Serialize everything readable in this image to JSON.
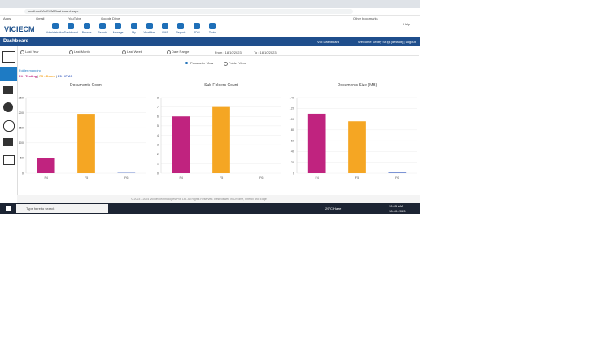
{
  "browser": {
    "url": "localhost/ViciECM/Dashboard.aspx",
    "bookmarks": [
      "Apps",
      "Gmail",
      "YouTube",
      "Google Drive",
      "Other bookmarks"
    ]
  },
  "app": {
    "logo": "VICIECM",
    "toolbar": [
      "Administration",
      "Dashboard",
      "Browse",
      "Search",
      "Manage",
      "My",
      "Workflow",
      "FMS",
      "Reports",
      "PDM",
      "Tools"
    ],
    "help": "Help",
    "page_title": "Dashboard",
    "dashboard_link": "Vici Dashboard",
    "welcome": "Welcome Sentry Sr @ (default) | Logout",
    "filters": [
      "Last Year",
      "Last Month",
      "Last Week",
      "Date Range"
    ],
    "from": "From : 18/10/2023",
    "to": "To : 18/10/2023",
    "views": [
      "Parameter View",
      "Folder View"
    ],
    "folder_mapping_title": "Folder mapping",
    "folder_mapping": [
      "F4 - Testing",
      "F5 - Demo",
      "F6 - IPMC"
    ],
    "footer": "© 2023 - 2024 Vicinet Technologies Pvt. Ltd. All Rights Reserved. Best viewed in Chrome, Firefox and Edge"
  },
  "chart_data": [
    {
      "type": "bar",
      "title": "Documents Count",
      "categories": [
        "F4",
        "F5",
        "F6"
      ],
      "values": [
        51,
        196,
        1
      ],
      "colors": [
        "#c0237f",
        "#f5a623",
        "#3b5fc0"
      ],
      "ylim": [
        0,
        250
      ],
      "yticks": [
        0,
        50,
        100,
        150,
        200,
        250
      ],
      "grid": true
    },
    {
      "type": "bar",
      "title": "Sub Folders Count",
      "categories": [
        "F4",
        "F5",
        "F6"
      ],
      "values": [
        6,
        7,
        0
      ],
      "colors": [
        "#c0237f",
        "#f5a623",
        "#3b5fc0"
      ],
      "ylim": [
        0,
        8
      ],
      "yticks": [
        0,
        1,
        2,
        3,
        4,
        5,
        6,
        7,
        8
      ],
      "grid": true
    },
    {
      "type": "bar",
      "title": "Documents Size (MB)",
      "categories": [
        "F4",
        "F5",
        "F6"
      ],
      "values": [
        110,
        96,
        1
      ],
      "colors": [
        "#c0237f",
        "#f5a623",
        "#3b5fc0"
      ],
      "ylim": [
        0,
        140
      ],
      "yticks": [
        0,
        20,
        40,
        60,
        80,
        100,
        120,
        140
      ],
      "grid": true
    }
  ],
  "taskbar": {
    "search": "Type here to search",
    "weather": "29°C Haze",
    "time": "10:03 AM",
    "date": "18-10-2023"
  }
}
